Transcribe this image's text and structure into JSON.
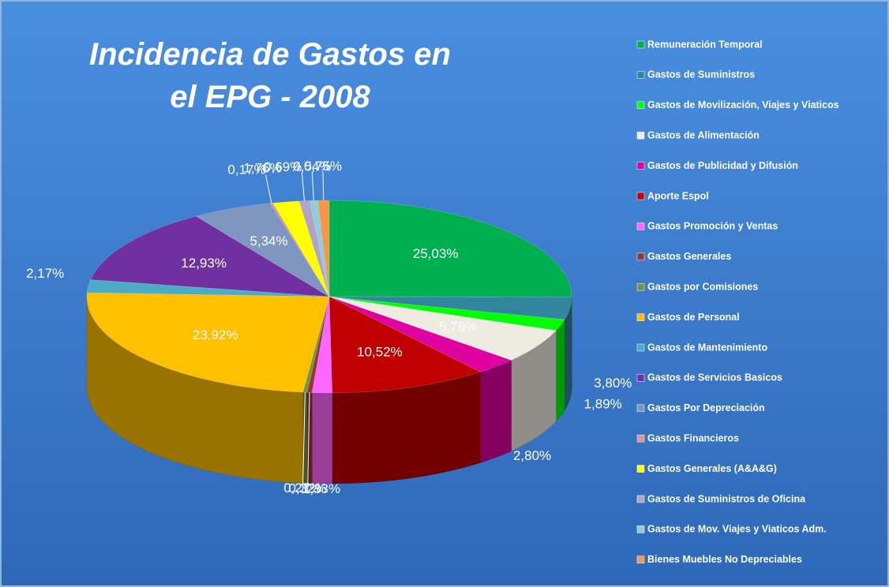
{
  "chart_data": {
    "type": "pie3d",
    "title": "Incidencia de Gastos en el EPG - 2008",
    "categories": [
      "Remuneración Temporal",
      "Gastos de Suministros",
      "Gastos de Movilización, Viajes y Viaticos",
      "Gastos de Alimentación",
      "Gastos de Publicidad y Difusión",
      "Aporte Espol",
      "Gastos Promoción y Ventas",
      "Gastos Generales",
      "Gastos por Comisiones",
      "Gastos de Personal",
      "Gastos de Mantenimiento",
      "Gastos de Servicios Basicos",
      "Gastos Por Depreciación",
      "Gastos Financieros",
      "Gastos  Generales (A&A&G)",
      "Gastos de Suministros de Oficina",
      "Gastos de Mov. Viajes y Viaticos Adm.",
      "Bienes Muebles No Depreciables"
    ],
    "values": [
      25.03,
      3.8,
      1.89,
      5.76,
      2.8,
      10.52,
      1.33,
      0.32,
      0.27,
      23.92,
      2.17,
      12.93,
      5.34,
      0.17,
      1.76,
      0.69,
      0.54,
      0.75
    ],
    "value_labels": [
      "25,03%",
      "3,80%",
      "1,89%",
      "5,76%",
      "2,80%",
      "10,52%",
      "1,33%",
      "0,32%",
      "0,27%",
      "23,92%",
      "2,17%",
      "12,93%",
      "5,34%",
      "0,17%",
      "1,76%",
      "0,69%",
      "0,54%",
      "0,75%"
    ],
    "colors": [
      "#00b050",
      "#31859c",
      "#00ff00",
      "#eeece1",
      "#e000a0",
      "#c00000",
      "#ff66ff",
      "#953735",
      "#77933c",
      "#ffc000",
      "#4bacc6",
      "#7030a0",
      "#7f96c0",
      "#d99694",
      "#ffff00",
      "#b3a2c7",
      "#92cddc",
      "#f79646"
    ]
  }
}
